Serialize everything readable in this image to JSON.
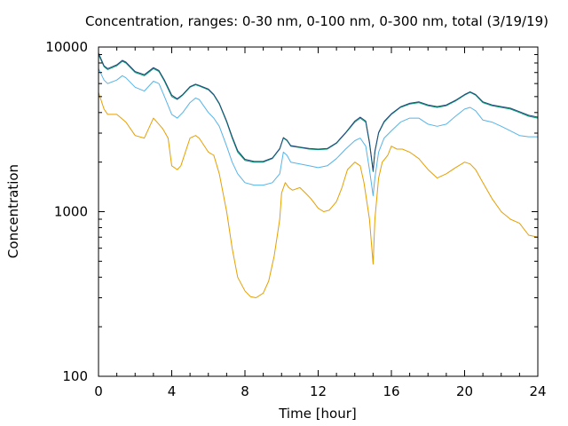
{
  "chart_data": {
    "type": "line",
    "title": "Concentration, ranges: 0-30 nm, 0-100 nm, 0-300 nm, total (3/19/19)",
    "xlabel": "Time [hour]",
    "ylabel": "Concentration",
    "xlim": [
      0,
      24
    ],
    "ylim": [
      100,
      10000
    ],
    "yscale": "log",
    "grid": false,
    "legend": "none",
    "xticks": [
      0,
      4,
      8,
      12,
      16,
      20,
      24
    ],
    "yticks": [
      100,
      1000,
      10000
    ],
    "xtick_labels": [
      "0",
      "4",
      "8",
      "12",
      "16",
      "20",
      "24"
    ],
    "ytick_labels": [
      "100",
      "1000",
      "10000"
    ],
    "series": [
      {
        "color": "#e69f00",
        "x": [
          0,
          0.3,
          0.5,
          1,
          1.5,
          2,
          2.5,
          3,
          3.5,
          3.8,
          4,
          4.3,
          4.5,
          4.8,
          5,
          5.3,
          5.5,
          6,
          6.3,
          6.6,
          7,
          7.3,
          7.6,
          8,
          8.3,
          8.6,
          9,
          9.3,
          9.6,
          9.9,
          10,
          10.2,
          10.4,
          10.6,
          11,
          11.3,
          11.6,
          12,
          12.3,
          12.6,
          13,
          13.3,
          13.6,
          14,
          14.3,
          14.5,
          14.8,
          15,
          15.1,
          15.3,
          15.5,
          15.8,
          16,
          16.3,
          16.6,
          17,
          17.5,
          18,
          18.5,
          19,
          19.5,
          20,
          20.3,
          20.6,
          21,
          21.5,
          22,
          22.5,
          23,
          23.5,
          24
        ],
        "values": [
          5300,
          4200,
          3900,
          3900,
          3500,
          2900,
          2800,
          3700,
          3200,
          2800,
          1900,
          1800,
          1900,
          2400,
          2800,
          2900,
          2800,
          2300,
          2200,
          1700,
          1000,
          600,
          400,
          330,
          305,
          300,
          320,
          380,
          540,
          900,
          1300,
          1500,
          1400,
          1350,
          1400,
          1300,
          1200,
          1050,
          1000,
          1020,
          1150,
          1400,
          1800,
          2000,
          1900,
          1500,
          900,
          480,
          900,
          1600,
          2000,
          2200,
          2500,
          2400,
          2400,
          2300,
          2100,
          1800,
          1600,
          1700,
          1850,
          2000,
          1950,
          1800,
          1500,
          1200,
          1000,
          900,
          850,
          720,
          700
        ]
      },
      {
        "color": "#56b4e9",
        "x": [
          0,
          0.3,
          0.5,
          1,
          1.3,
          1.5,
          2,
          2.5,
          3,
          3.3,
          3.6,
          4,
          4.3,
          4.6,
          5,
          5.3,
          5.5,
          6,
          6.3,
          6.6,
          7,
          7.3,
          7.6,
          8,
          8.5,
          9,
          9.5,
          9.9,
          10.1,
          10.3,
          10.5,
          11,
          11.5,
          12,
          12.5,
          13,
          13.5,
          14,
          14.3,
          14.6,
          14.8,
          15,
          15.1,
          15.3,
          15.6,
          16,
          16.5,
          17,
          17.5,
          18,
          18.5,
          19,
          19.5,
          20,
          20.3,
          20.6,
          21,
          21.5,
          22,
          22.5,
          23,
          23.5,
          24
        ],
        "values": [
          7400,
          6300,
          6000,
          6300,
          6700,
          6500,
          5700,
          5400,
          6200,
          6000,
          5000,
          3900,
          3700,
          4000,
          4600,
          4900,
          4800,
          4000,
          3700,
          3300,
          2500,
          2000,
          1700,
          1500,
          1450,
          1450,
          1500,
          1700,
          2300,
          2200,
          2000,
          1950,
          1900,
          1850,
          1900,
          2100,
          2400,
          2700,
          2800,
          2500,
          1800,
          1250,
          1600,
          2300,
          2800,
          3100,
          3500,
          3700,
          3700,
          3400,
          3300,
          3400,
          3800,
          4200,
          4300,
          4100,
          3600,
          3500,
          3300,
          3100,
          2900,
          2850,
          2850
        ]
      },
      {
        "color": "#009e73",
        "x": [
          0,
          0.3,
          0.5,
          1,
          1.3,
          1.5,
          2,
          2.5,
          3,
          3.3,
          3.6,
          4,
          4.3,
          4.6,
          5,
          5.3,
          5.5,
          6,
          6.3,
          6.6,
          7,
          7.3,
          7.6,
          8,
          8.5,
          9,
          9.5,
          9.9,
          10.1,
          10.3,
          10.5,
          11,
          11.5,
          12,
          12.5,
          13,
          13.5,
          14,
          14.3,
          14.6,
          14.8,
          15,
          15.1,
          15.3,
          15.6,
          16,
          16.5,
          17,
          17.5,
          18,
          18.5,
          19,
          19.5,
          20,
          20.3,
          20.6,
          21,
          21.5,
          22,
          22.5,
          23,
          23.5,
          24
        ],
        "values": [
          9000,
          7600,
          7300,
          7700,
          8200,
          8000,
          7000,
          6700,
          7400,
          7100,
          6200,
          5000,
          4800,
          5100,
          5700,
          5900,
          5800,
          5500,
          5100,
          4500,
          3500,
          2800,
          2300,
          2050,
          2000,
          2000,
          2100,
          2400,
          2800,
          2700,
          2500,
          2450,
          2400,
          2380,
          2400,
          2600,
          3000,
          3500,
          3700,
          3500,
          2600,
          1750,
          2300,
          3000,
          3500,
          3900,
          4300,
          4500,
          4600,
          4400,
          4300,
          4400,
          4700,
          5100,
          5300,
          5100,
          4600,
          4400,
          4300,
          4200,
          4000,
          3800,
          3700
        ]
      },
      {
        "color": "#24477d",
        "x": [
          0,
          0.3,
          0.5,
          1,
          1.3,
          1.5,
          2,
          2.5,
          3,
          3.3,
          3.6,
          4,
          4.3,
          4.6,
          5,
          5.3,
          5.5,
          6,
          6.3,
          6.6,
          7,
          7.3,
          7.6,
          8,
          8.5,
          9,
          9.5,
          9.9,
          10.1,
          10.3,
          10.5,
          11,
          11.5,
          12,
          12.5,
          13,
          13.5,
          14,
          14.3,
          14.6,
          14.8,
          15,
          15.1,
          15.3,
          15.6,
          16,
          16.5,
          17,
          17.5,
          18,
          18.5,
          19,
          19.5,
          20,
          20.3,
          20.6,
          21,
          21.5,
          22,
          22.5,
          23,
          23.5,
          24
        ],
        "values": [
          9200,
          7700,
          7400,
          7800,
          8300,
          8100,
          7100,
          6800,
          7500,
          7200,
          6300,
          5100,
          4850,
          5150,
          5750,
          5950,
          5850,
          5550,
          5150,
          4550,
          3550,
          2850,
          2350,
          2080,
          2020,
          2020,
          2120,
          2420,
          2820,
          2720,
          2520,
          2470,
          2420,
          2400,
          2420,
          2620,
          3020,
          3550,
          3750,
          3550,
          2650,
          1780,
          2330,
          3030,
          3530,
          3930,
          4330,
          4550,
          4650,
          4450,
          4350,
          4450,
          4750,
          5150,
          5350,
          5150,
          4650,
          4450,
          4350,
          4250,
          4050,
          3850,
          3750
        ]
      }
    ]
  }
}
